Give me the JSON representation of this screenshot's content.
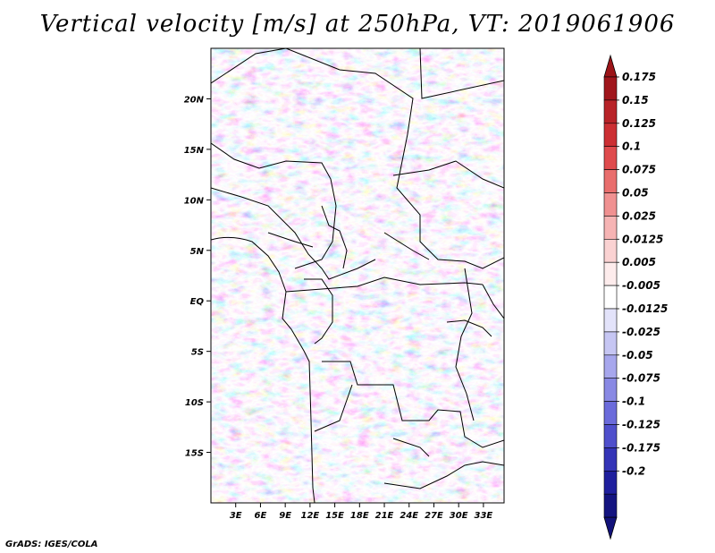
{
  "chart_data": {
    "type": "heatmap",
    "title": "Vertical velocity [m/s] at 250hPa, VT: 2019061906",
    "variable": "Vertical velocity",
    "units": "m/s",
    "level": "250hPa",
    "valid_time": "2019061906",
    "xlabel": "",
    "ylabel": "",
    "xlim": [
      0,
      35.5
    ],
    "ylim": [
      -20,
      25
    ],
    "x_ticks": [
      3,
      6,
      9,
      12,
      15,
      18,
      21,
      24,
      27,
      30,
      33
    ],
    "x_tick_labels": [
      "3E",
      "6E",
      "9E",
      "12E",
      "15E",
      "18E",
      "21E",
      "24E",
      "27E",
      "30E",
      "33E"
    ],
    "y_ticks": [
      20,
      15,
      10,
      5,
      0,
      -5,
      -10,
      -15
    ],
    "y_tick_labels": [
      "20N",
      "15N",
      "10N",
      "5N",
      "EQ",
      "5S",
      "10S",
      "15S"
    ],
    "colorbar_levels": [
      "0.175",
      "0.15",
      "0.125",
      "0.1",
      "0.075",
      "0.05",
      "0.025",
      "0.0125",
      "0.005",
      "-0.005",
      "-0.0125",
      "-0.025",
      "-0.05",
      "-0.075",
      "-0.1",
      "-0.125",
      "-0.175",
      "-0.2"
    ],
    "colorbar_colors": [
      "#a0161c",
      "#b82328",
      "#cc2f33",
      "#df4b4d",
      "#e96e6d",
      "#f09191",
      "#f6b4b4",
      "#fad2d2",
      "#fdecec",
      "#ffffff",
      "#e3e3fa",
      "#c6c6f3",
      "#a7a7ed",
      "#8989e4",
      "#6b6bdb",
      "#4f4fcc",
      "#3434b7",
      "#1f1f9e",
      "#141480"
    ],
    "colorbar_top_arrow": "#9c1418",
    "colorbar_bottom_arrow": "#12127a"
  },
  "footer": "GrADS: IGES/COLA"
}
